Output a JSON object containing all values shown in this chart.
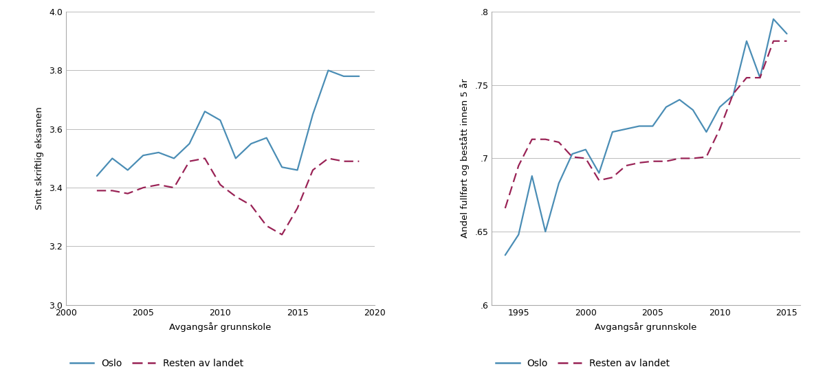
{
  "left": {
    "oslo_x": [
      2002,
      2003,
      2004,
      2005,
      2006,
      2007,
      2008,
      2009,
      2010,
      2011,
      2012,
      2013,
      2014,
      2015,
      2016,
      2017,
      2018,
      2019
    ],
    "oslo_y": [
      3.44,
      3.5,
      3.46,
      3.51,
      3.52,
      3.5,
      3.55,
      3.66,
      3.63,
      3.5,
      3.55,
      3.57,
      3.47,
      3.46,
      3.65,
      3.8,
      3.78,
      3.78
    ],
    "resten_x": [
      2002,
      2003,
      2004,
      2005,
      2006,
      2007,
      2008,
      2009,
      2010,
      2011,
      2012,
      2013,
      2014,
      2015,
      2016,
      2017,
      2018,
      2019
    ],
    "resten_y": [
      3.39,
      3.39,
      3.38,
      3.4,
      3.41,
      3.4,
      3.49,
      3.5,
      3.41,
      3.37,
      3.34,
      3.27,
      3.24,
      3.33,
      3.46,
      3.5,
      3.49,
      3.49
    ],
    "xlabel": "Avgangsår grunnskole",
    "ylabel": "Snitt skriftlig eksamen",
    "xlim": [
      2000,
      2020
    ],
    "ylim": [
      3.0,
      4.0
    ],
    "yticks": [
      3.0,
      3.2,
      3.4,
      3.6,
      3.8,
      4.0
    ],
    "xticks": [
      2000,
      2005,
      2010,
      2015,
      2020
    ]
  },
  "right": {
    "oslo_x": [
      1994,
      1995,
      1996,
      1997,
      1998,
      1999,
      2000,
      2001,
      2002,
      2003,
      2004,
      2005,
      2006,
      2007,
      2008,
      2009,
      2010,
      2011,
      2012,
      2013,
      2014,
      2015
    ],
    "oslo_y": [
      0.634,
      0.648,
      0.688,
      0.65,
      0.683,
      0.703,
      0.706,
      0.69,
      0.718,
      0.72,
      0.722,
      0.722,
      0.735,
      0.74,
      0.733,
      0.718,
      0.735,
      0.743,
      0.78,
      0.755,
      0.795,
      0.785
    ],
    "resten_x": [
      1994,
      1995,
      1996,
      1997,
      1998,
      1999,
      2000,
      2001,
      2002,
      2003,
      2004,
      2005,
      2006,
      2007,
      2008,
      2009,
      2010,
      2011,
      2012,
      2013,
      2014,
      2015
    ],
    "resten_y": [
      0.666,
      0.695,
      0.713,
      0.713,
      0.711,
      0.701,
      0.7,
      0.685,
      0.687,
      0.695,
      0.697,
      0.698,
      0.698,
      0.7,
      0.7,
      0.701,
      0.72,
      0.744,
      0.755,
      0.755,
      0.78,
      0.78
    ],
    "xlabel": "Avgangsår grunnskole",
    "ylabel": "Andel fullført og bestått innen 5 år",
    "xlim": [
      1993,
      2016
    ],
    "ylim": [
      0.6,
      0.8
    ],
    "yticks": [
      0.6,
      0.65,
      0.7,
      0.75,
      0.8
    ],
    "xticks": [
      1995,
      2000,
      2005,
      2010,
      2015
    ]
  },
  "oslo_color": "#4a8db5",
  "resten_color": "#992255",
  "oslo_label": "Oslo",
  "resten_label": "Resten av landet",
  "background_color": "#ffffff",
  "plot_background": "#ffffff",
  "grid_color": "#bbbbbb",
  "border_color": "#aaaaaa",
  "legend_fontsize": 10,
  "axis_fontsize": 9.5,
  "tick_fontsize": 9
}
